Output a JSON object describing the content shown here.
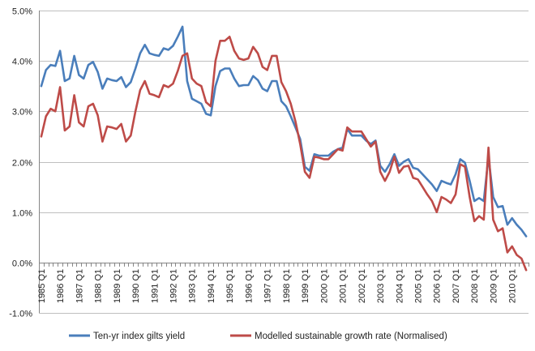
{
  "chart_data": {
    "type": "line",
    "title": "",
    "xlabel": "",
    "ylabel": "",
    "ylim": [
      -0.01,
      0.05
    ],
    "yticks": [
      -0.01,
      0.0,
      0.01,
      0.02,
      0.03,
      0.04,
      0.05
    ],
    "ytick_labels": [
      "-1.0%",
      "0.0%",
      "1.0%",
      "2.0%",
      "3.0%",
      "4.0%",
      "5.0%"
    ],
    "grid": "horizontal",
    "legend_position": "bottom",
    "x_start": "1985 Q1",
    "x_step": "quarter",
    "xtick_labels": [
      "1985 Q1",
      "1986 Q1",
      "1987 Q1",
      "1988 Q1",
      "1989 Q1",
      "1990 Q1",
      "1991 Q1",
      "1992 Q1",
      "1993 Q1",
      "1994 Q1",
      "1995 Q1",
      "1996 Q1",
      "1997 Q1",
      "1998 Q1",
      "1999 Q1",
      "2000 Q1",
      "2001 Q1",
      "2002 Q1",
      "2003 Q1",
      "2004 Q1",
      "2005 Q1",
      "2006 Q1",
      "2007 Q1",
      "2008 Q1",
      "2009 Q1",
      "2010 Q1"
    ],
    "series": [
      {
        "name": "Ten-yr index gilts yield",
        "color": "#4a7ebb",
        "values": [
          0.035,
          0.0382,
          0.0392,
          0.039,
          0.042,
          0.036,
          0.0365,
          0.041,
          0.0372,
          0.0365,
          0.0392,
          0.0398,
          0.0378,
          0.0345,
          0.0365,
          0.0362,
          0.036,
          0.0368,
          0.0348,
          0.0358,
          0.0385,
          0.0415,
          0.0432,
          0.0415,
          0.0412,
          0.041,
          0.0425,
          0.0422,
          0.043,
          0.0448,
          0.0468,
          0.036,
          0.0325,
          0.032,
          0.0315,
          0.0295,
          0.0292,
          0.035,
          0.038,
          0.0385,
          0.0385,
          0.0365,
          0.035,
          0.0352,
          0.0352,
          0.037,
          0.0362,
          0.0345,
          0.034,
          0.036,
          0.036,
          0.032,
          0.031,
          0.029,
          0.0268,
          0.0245,
          0.019,
          0.0182,
          0.0215,
          0.0212,
          0.0212,
          0.0212,
          0.022,
          0.0225,
          0.0228,
          0.0265,
          0.0252,
          0.0252,
          0.0252,
          0.0242,
          0.0235,
          0.0242,
          0.0192,
          0.018,
          0.0195,
          0.0215,
          0.0192,
          0.02,
          0.0205,
          0.0188,
          0.0185,
          0.0175,
          0.0165,
          0.0155,
          0.0142,
          0.0162,
          0.0158,
          0.0155,
          0.0175,
          0.0205,
          0.0198,
          0.0162,
          0.0122,
          0.0128,
          0.0122,
          0.021,
          0.013,
          0.011,
          0.0112,
          0.0075,
          0.0088,
          0.0075,
          0.0065,
          0.0052
        ]
      },
      {
        "name": "Modelled sustainable growth rate (Normalised)",
        "color": "#be4b48",
        "values": [
          0.025,
          0.029,
          0.0305,
          0.03,
          0.0348,
          0.0262,
          0.027,
          0.0332,
          0.0278,
          0.027,
          0.031,
          0.0315,
          0.0292,
          0.024,
          0.027,
          0.0268,
          0.0265,
          0.0275,
          0.024,
          0.0252,
          0.03,
          0.0342,
          0.036,
          0.0335,
          0.0332,
          0.0328,
          0.0352,
          0.0348,
          0.0355,
          0.038,
          0.041,
          0.0415,
          0.0365,
          0.0355,
          0.035,
          0.0318,
          0.031,
          0.04,
          0.044,
          0.044,
          0.0448,
          0.042,
          0.0405,
          0.0402,
          0.0405,
          0.0428,
          0.0415,
          0.0388,
          0.0382,
          0.041,
          0.041,
          0.0358,
          0.034,
          0.0315,
          0.028,
          0.0235,
          0.018,
          0.0168,
          0.021,
          0.0208,
          0.0205,
          0.0205,
          0.0215,
          0.0225,
          0.0222,
          0.0268,
          0.026,
          0.026,
          0.026,
          0.0245,
          0.023,
          0.024,
          0.018,
          0.0162,
          0.018,
          0.021,
          0.0178,
          0.019,
          0.0192,
          0.0168,
          0.0165,
          0.015,
          0.0135,
          0.0122,
          0.01,
          0.013,
          0.0125,
          0.0118,
          0.0135,
          0.0195,
          0.019,
          0.013,
          0.0082,
          0.0092,
          0.0085,
          0.0228,
          0.0085,
          0.0062,
          0.0068,
          0.002,
          0.0032,
          0.0015,
          0.0008,
          -0.0015
        ]
      }
    ]
  }
}
